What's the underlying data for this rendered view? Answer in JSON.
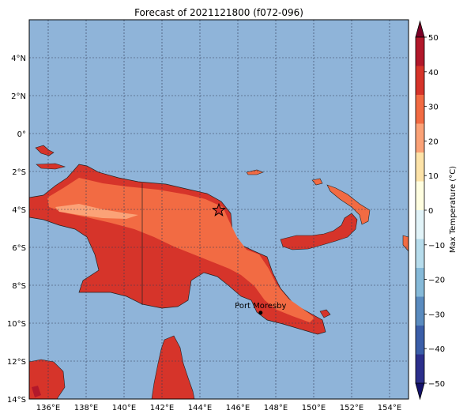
{
  "title": "Forecast of 2021121800 (f072-096)",
  "colors": {
    "ocean": "#8fb4d9",
    "land_hot": "#d6342a",
    "land_warm": "#f26b43",
    "land_mild": "#fba277",
    "grid": "#333a55"
  },
  "map": {
    "lon_range": [
      135,
      155
    ],
    "lat_range": [
      -14,
      6
    ],
    "lon_ticks": [
      "136°E",
      "138°E",
      "140°E",
      "142°E",
      "144°E",
      "146°E",
      "148°E",
      "150°E",
      "152°E",
      "154°E"
    ],
    "lat_ticks": [
      "4°N",
      "2°N",
      "0°",
      "2°S",
      "4°S",
      "6°S",
      "8°S",
      "10°S",
      "12°S",
      "14°S"
    ],
    "city": {
      "label": "Port Moresby",
      "lon": 147.2,
      "lat": -9.45
    },
    "star": {
      "lon": 145.0,
      "lat": -4.05
    }
  },
  "colorbar": {
    "label": "Max Temperature (°C)",
    "ticks": [
      "50",
      "40",
      "30",
      "20",
      "10",
      "0",
      "−10",
      "−20",
      "−30",
      "−40",
      "−50"
    ],
    "bands": [
      "#7a0026",
      "#b2182b",
      "#d6342a",
      "#f26b43",
      "#fba277",
      "#fde3a8",
      "#fffee0",
      "#e1f3f8",
      "#b6dcec",
      "#86bad9",
      "#5a8bbf",
      "#3b5ea8",
      "#2c2f8c",
      "#14126b"
    ]
  }
}
